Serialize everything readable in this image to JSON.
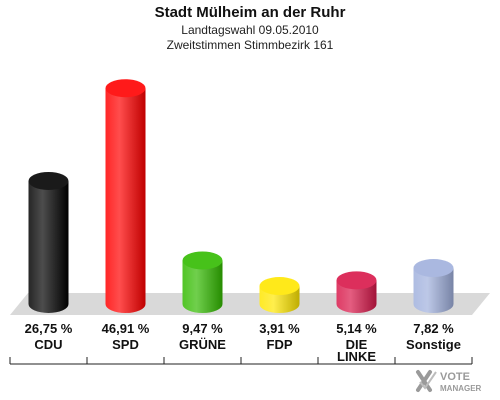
{
  "header": {
    "title": "Stadt Mülheim an der Ruhr",
    "subtitle": "Landtagswahl 09.05.2010",
    "subtitle2": "Zweitstimmen Stimmbezirk 161"
  },
  "chart_data": {
    "type": "bar",
    "categories": [
      "CDU",
      "SPD",
      "GRÜNE",
      "FDP",
      "DIE LINKE",
      "Sonstige"
    ],
    "values": [
      26.75,
      46.91,
      9.47,
      3.91,
      5.14,
      7.82
    ],
    "value_labels": [
      "26,75 %",
      "46,91 %",
      "9,47 %",
      "3,91 %",
      "5,14 %",
      "7,82 %"
    ],
    "colors": [
      "#000000",
      "#ff0000",
      "#33bb00",
      "#ffe600",
      "#d8184a",
      "#a0b0dd"
    ],
    "title": "Stadt Mülheim an der Ruhr",
    "ylim": [
      0,
      50
    ],
    "grid": false,
    "legend": "none"
  },
  "logo": {
    "text_line1": "VOTE",
    "text_line2": "MANAGER",
    "icon": "checkmark-x-icon"
  }
}
